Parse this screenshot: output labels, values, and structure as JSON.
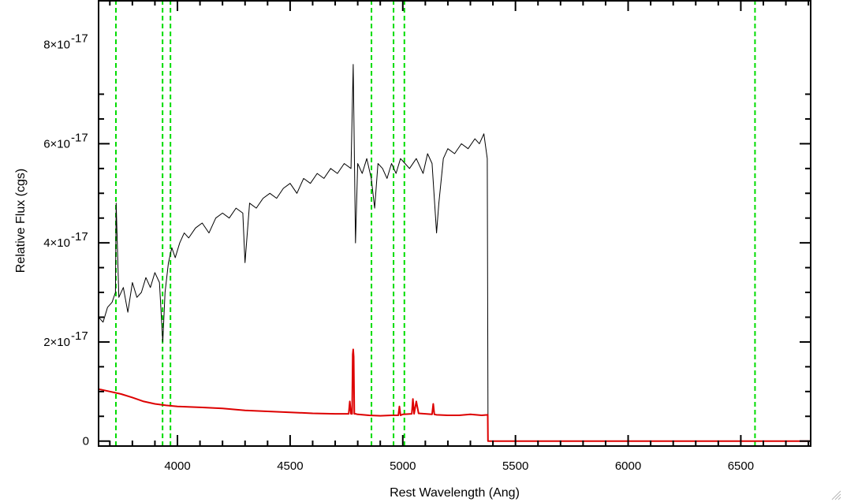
{
  "chart_data": {
    "type": "line",
    "title": "",
    "xlabel": "Rest Wavelength (Ang)",
    "ylabel": "Relative Flux (cgs)",
    "xlim": [
      3650,
      6810
    ],
    "ylim": [
      -1e-18,
      8.9e-17
    ],
    "x_ticks": [
      {
        "value": 4000,
        "label": "4000"
      },
      {
        "value": 4500,
        "label": "4500"
      },
      {
        "value": 5000,
        "label": "5000"
      },
      {
        "value": 5500,
        "label": "5500"
      },
      {
        "value": 6000,
        "label": "6000"
      },
      {
        "value": 6500,
        "label": "6500"
      }
    ],
    "y_ticks": [
      {
        "value": 0,
        "label": "0",
        "exp": ""
      },
      {
        "value": 2e-17,
        "label": "2×10",
        "exp": "-17"
      },
      {
        "value": 4e-17,
        "label": "4×10",
        "exp": "-17"
      },
      {
        "value": 6e-17,
        "label": "6×10",
        "exp": "-17"
      },
      {
        "value": 8e-17,
        "label": "8×10",
        "exp": "-17"
      }
    ],
    "grid": false,
    "line_markers": {
      "color": "#00dd00",
      "style": "dashed",
      "x": [
        3727,
        3934,
        3969,
        4861,
        4959,
        5007,
        6563
      ]
    },
    "series": [
      {
        "role": "flux",
        "color": "#000000",
        "x": [
          3650,
          3670,
          3690,
          3710,
          3725,
          3728,
          3740,
          3760,
          3780,
          3800,
          3820,
          3840,
          3860,
          3880,
          3900,
          3920,
          3935,
          3945,
          3960,
          3975,
          3990,
          4010,
          4030,
          4050,
          4080,
          4110,
          4140,
          4170,
          4200,
          4230,
          4260,
          4290,
          4300,
          4320,
          4350,
          4380,
          4410,
          4440,
          4470,
          4500,
          4530,
          4560,
          4590,
          4620,
          4650,
          4680,
          4710,
          4740,
          4770,
          4780,
          4790,
          4800,
          4820,
          4840,
          4860,
          4875,
          4890,
          4910,
          4930,
          4950,
          4970,
          4990,
          5010,
          5030,
          5060,
          5090,
          5110,
          5130,
          5150,
          5160,
          5180,
          5200,
          5230,
          5260,
          5290,
          5320,
          5340,
          5360,
          5375,
          5378
        ],
        "y": [
          2.5e-17,
          2.4e-17,
          2.7e-17,
          2.8e-17,
          3e-17,
          4.8e-17,
          2.9e-17,
          3.1e-17,
          2.6e-17,
          3.2e-17,
          2.9e-17,
          3e-17,
          3.3e-17,
          3.1e-17,
          3.4e-17,
          3.2e-17,
          2e-17,
          3e-17,
          3.6e-17,
          3.9e-17,
          3.7e-17,
          4e-17,
          4.2e-17,
          4.1e-17,
          4.3e-17,
          4.4e-17,
          4.2e-17,
          4.5e-17,
          4.6e-17,
          4.5e-17,
          4.7e-17,
          4.6e-17,
          3.6e-17,
          4.8e-17,
          4.7e-17,
          4.9e-17,
          5e-17,
          4.9e-17,
          5.1e-17,
          5.2e-17,
          5e-17,
          5.3e-17,
          5.2e-17,
          5.4e-17,
          5.3e-17,
          5.5e-17,
          5.4e-17,
          5.6e-17,
          5.5e-17,
          7.6e-17,
          4e-17,
          5.6e-17,
          5.4e-17,
          5.7e-17,
          5.3e-17,
          4.7e-17,
          5.6e-17,
          5.5e-17,
          5.3e-17,
          5.6e-17,
          5.4e-17,
          5.7e-17,
          5.6e-17,
          5.5e-17,
          5.7e-17,
          5.4e-17,
          5.8e-17,
          5.6e-17,
          4.2e-17,
          4.8e-17,
          5.7e-17,
          5.9e-17,
          5.8e-17,
          6e-17,
          5.9e-17,
          6.1e-17,
          6e-17,
          6.2e-17,
          5.7e-17,
          5e-18
        ]
      },
      {
        "role": "error",
        "color": "#dd0000",
        "x": [
          3650,
          3700,
          3750,
          3800,
          3850,
          3900,
          3950,
          4000,
          4100,
          4200,
          4300,
          4400,
          4500,
          4600,
          4700,
          4760,
          4765,
          4770,
          4775,
          4778,
          4780,
          4782,
          4785,
          4790,
          4800,
          4850,
          4900,
          4950,
          4980,
          4985,
          4990,
          5000,
          5040,
          5045,
          5050,
          5060,
          5070,
          5100,
          5130,
          5135,
          5140,
          5150,
          5200,
          5250,
          5300,
          5350,
          5377,
          5378,
          5380,
          5500,
          6000,
          6500,
          6810
        ],
        "y": [
          1.05e-17,
          1e-17,
          9.5e-18,
          8.8e-18,
          8e-18,
          7.5e-18,
          7.2e-18,
          7e-18,
          6.8e-18,
          6.6e-18,
          6.2e-18,
          6e-18,
          5.8e-18,
          5.6e-18,
          5.5e-18,
          5.5e-18,
          8e-18,
          5.5e-18,
          5.5e-18,
          1.75e-17,
          1.85e-17,
          1.7e-17,
          5.5e-18,
          5.5e-18,
          5.4e-18,
          5.2e-18,
          5.1e-18,
          5.2e-18,
          5.2e-18,
          7e-18,
          5.2e-18,
          5.4e-18,
          5.5e-18,
          8.5e-18,
          5.5e-18,
          8e-18,
          5.6e-18,
          5.5e-18,
          5.4e-18,
          7.5e-18,
          5.4e-18,
          5.3e-18,
          5.2e-18,
          5.2e-18,
          5.4e-18,
          5.2e-18,
          5.3e-18,
          0.0,
          0.0,
          0.0,
          0.0,
          0.0,
          0.0
        ]
      }
    ]
  }
}
